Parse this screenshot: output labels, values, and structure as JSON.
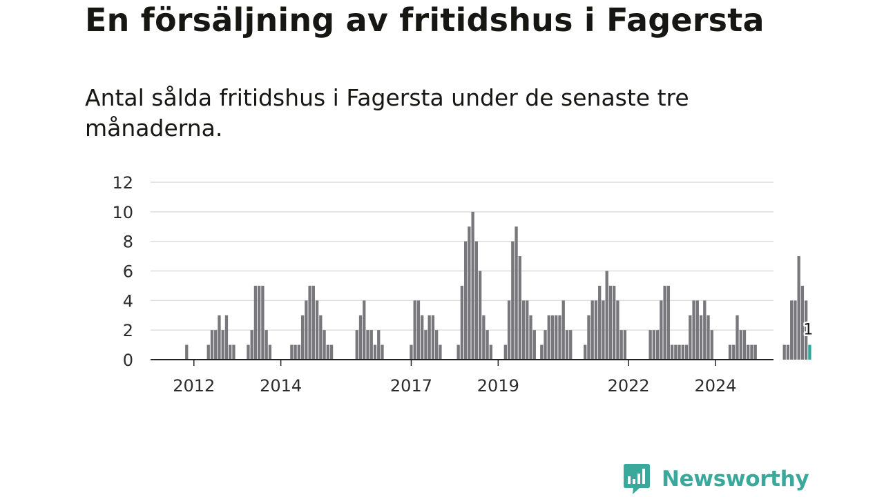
{
  "title": "En försäljning av fritidshus i Fagersta",
  "subtitle": "Antal sålda fritidshus i Fagersta under de senaste tre månaderna.",
  "brand": {
    "name": "Newsworthy",
    "color": "#3aa99c"
  },
  "colors": {
    "bar": "#77777c",
    "highlight": "#2ea79c",
    "grid": "#dddddd",
    "axis": "#222222"
  },
  "chart_data": {
    "type": "bar",
    "title": "En försäljning av fritidshus i Fagersta",
    "xlabel": "",
    "ylabel": "",
    "ylim": [
      0,
      12
    ],
    "yticks": [
      0,
      2,
      4,
      6,
      8,
      10,
      12
    ],
    "grid": true,
    "legend": "none",
    "x_start": "2011-03",
    "frequency": "monthly",
    "xtick_labels": [
      "2012",
      "2014",
      "2017",
      "2019",
      "2022",
      "2024"
    ],
    "xtick_months": [
      "2012-01",
      "2014-01",
      "2017-01",
      "2019-01",
      "2022-01",
      "2024-01"
    ],
    "values": [
      0,
      0,
      0,
      0,
      0,
      0,
      0,
      0,
      1,
      0,
      0,
      0,
      0,
      0,
      1,
      2,
      2,
      3,
      2,
      3,
      1,
      1,
      0,
      0,
      0,
      1,
      2,
      5,
      5,
      5,
      2,
      1,
      0,
      0,
      0,
      0,
      0,
      1,
      1,
      1,
      3,
      4,
      5,
      5,
      4,
      3,
      2,
      1,
      1,
      0,
      0,
      0,
      0,
      0,
      0,
      2,
      3,
      4,
      2,
      2,
      1,
      2,
      1,
      0,
      0,
      0,
      0,
      0,
      0,
      0,
      1,
      4,
      4,
      3,
      2,
      3,
      3,
      2,
      1,
      0,
      0,
      0,
      0,
      1,
      5,
      8,
      9,
      10,
      8,
      6,
      3,
      2,
      1,
      0,
      0,
      0,
      1,
      4,
      8,
      9,
      7,
      4,
      4,
      3,
      2,
      0,
      1,
      2,
      3,
      3,
      3,
      3,
      4,
      2,
      2,
      0,
      0,
      0,
      1,
      3,
      4,
      4,
      5,
      4,
      6,
      5,
      5,
      4,
      2,
      2,
      0,
      0,
      0,
      0,
      0,
      0,
      2,
      2,
      2,
      4,
      5,
      5,
      1,
      1,
      1,
      1,
      1,
      3,
      4,
      4,
      3,
      4,
      3,
      2,
      0,
      0,
      0,
      0,
      1,
      1,
      3,
      2,
      2,
      1,
      1,
      1,
      0,
      0,
      0,
      0,
      0,
      0,
      0,
      1,
      1,
      4,
      4,
      7,
      5,
      4,
      1
    ],
    "highlight_last": true,
    "last_label": "1"
  }
}
